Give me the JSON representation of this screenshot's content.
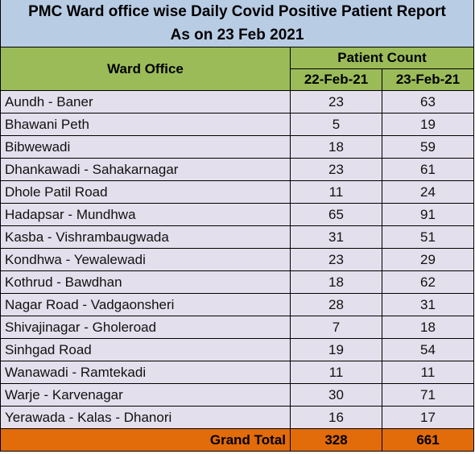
{
  "report": {
    "title_line1": "PMC Ward office wise Daily Covid Positive Patient Report",
    "title_line2": "As on 23 Feb 2021"
  },
  "table": {
    "col_ward": "Ward Office",
    "col_group": "Patient Count",
    "col_date1": "22-Feb-21",
    "col_date2": "23-Feb-21",
    "rows": [
      {
        "ward": "Aundh - Baner",
        "d1": "23",
        "d2": "63"
      },
      {
        "ward": "Bhawani Peth",
        "d1": "5",
        "d2": "19"
      },
      {
        "ward": "Bibwewadi",
        "d1": "18",
        "d2": "59"
      },
      {
        "ward": "Dhankawadi - Sahakarnagar",
        "d1": "23",
        "d2": "61"
      },
      {
        "ward": "Dhole Patil Road",
        "d1": "11",
        "d2": "24"
      },
      {
        "ward": "Hadapsar - Mundhwa",
        "d1": "65",
        "d2": "91"
      },
      {
        "ward": "Kasba - Vishrambaugwada",
        "d1": "31",
        "d2": "51"
      },
      {
        "ward": "Kondhwa - Yewalewadi",
        "d1": "23",
        "d2": "29"
      },
      {
        "ward": "Kothrud - Bawdhan",
        "d1": "18",
        "d2": "62"
      },
      {
        "ward": "Nagar Road - Vadgaonsheri",
        "d1": "28",
        "d2": "31"
      },
      {
        "ward": "Shivajinagar - Gholeroad",
        "d1": "7",
        "d2": "18"
      },
      {
        "ward": "Sinhgad Road",
        "d1": "19",
        "d2": "54"
      },
      {
        "ward": "Wanawadi - Ramtekadi",
        "d1": "11",
        "d2": "11"
      },
      {
        "ward": "Warje - Karvenagar",
        "d1": "30",
        "d2": "71"
      },
      {
        "ward": "Yerawada - Kalas - Dhanori",
        "d1": "16",
        "d2": "17"
      }
    ],
    "total": {
      "label": "Grand Total",
      "d1": "328",
      "d2": "661"
    }
  },
  "colors": {
    "title_bg": "#b8cce4",
    "header_bg": "#9bbb59",
    "row_bg": "#e4dfec",
    "total_bg": "#e26b0a"
  }
}
